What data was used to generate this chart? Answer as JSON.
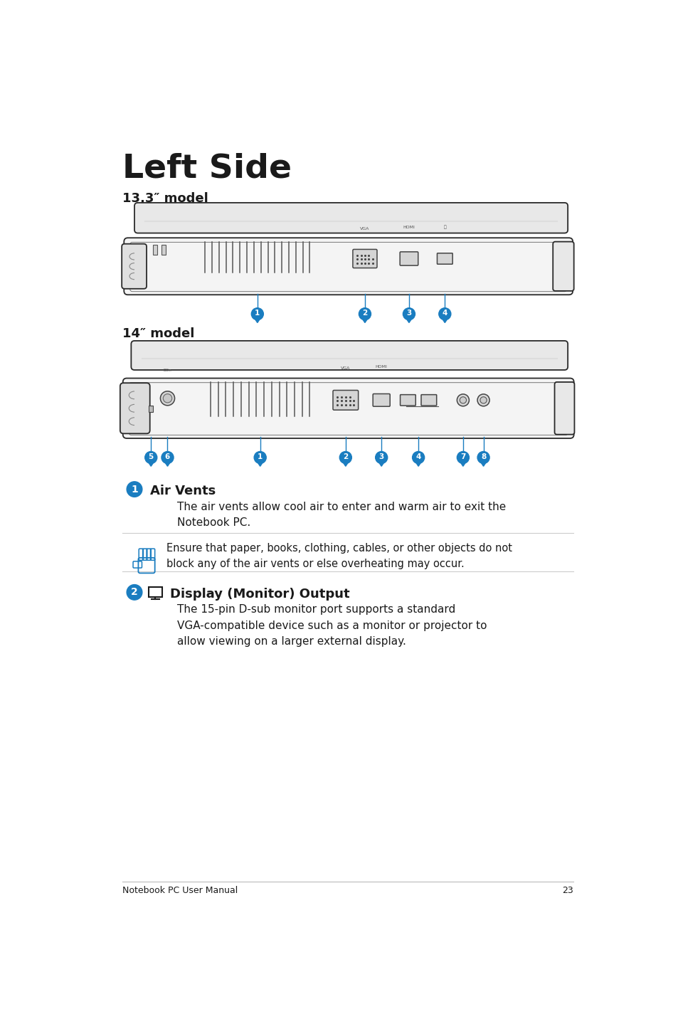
{
  "title": "Left Side",
  "page_bg": "#ffffff",
  "title_color": "#1a1a1a",
  "title_fontsize": 34,
  "model1_label": "13.3″ model",
  "model2_label": "14″ model",
  "model_label_fontsize": 13,
  "blue_color": "#1a7dc0",
  "dark_color": "#1a1a1a",
  "section1_title": "Air Vents",
  "section1_text": "The air vents allow cool air to enter and warm air to exit the\nNotebook PC.",
  "section1_warning": "Ensure that paper, books, clothing, cables, or other objects do not\nblock any of the air vents or else overheating may occur.",
  "section2_title": "Display (Monitor) Output",
  "section2_text": "The 15-pin D-sub monitor port supports a standard\nVGA-compatible device such as a monitor or projector to\nallow viewing on a larger external display.",
  "footer_text": "Notebook PC User Manual",
  "footer_page": "23",
  "footer_fontsize": 9
}
